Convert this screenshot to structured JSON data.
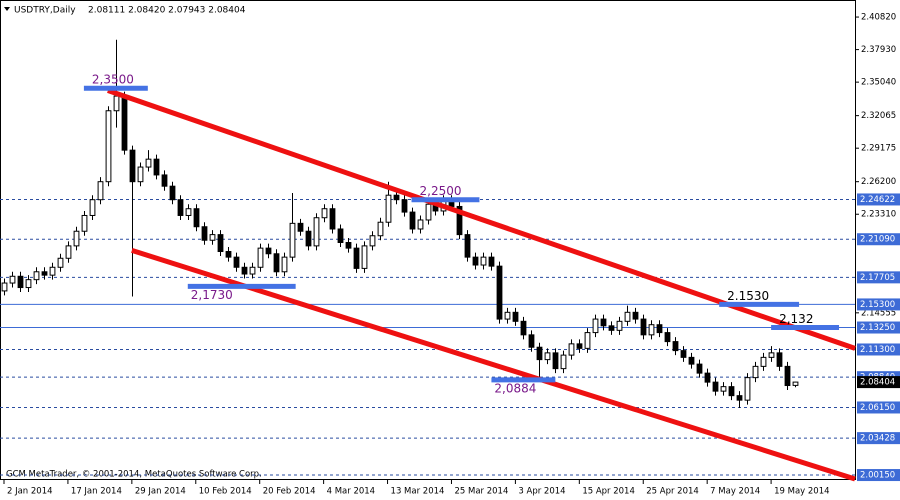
{
  "chart_data": {
    "type": "candlestick",
    "title": "USDTRY,Daily",
    "info": "2.08111 2.08420 2.07943 2.08404",
    "footer": "GCM MetaTrader, © 2001-2014, MetaQuotes Software Corp.",
    "up_color": "#ffffff",
    "down_color": "#000000",
    "xlim": [
      -0.5,
      106.5
    ],
    "ylim": [
      1.9971,
      2.4189
    ],
    "xticks": [
      {
        "value": 0,
        "label": "2 Jan 2014"
      },
      {
        "value": 8,
        "label": "17 Jan 2014"
      },
      {
        "value": 16,
        "label": "29 Jan 2014"
      },
      {
        "value": 24,
        "label": "10 Feb 2014"
      },
      {
        "value": 32,
        "label": "20 Feb 2014"
      },
      {
        "value": 40,
        "label": "4 Mar 2014"
      },
      {
        "value": 48,
        "label": "13 Mar 2014"
      },
      {
        "value": 56,
        "label": "25 Mar 2014"
      },
      {
        "value": 64,
        "label": "3 Apr 2014"
      },
      {
        "value": 72,
        "label": "15 Apr 2014"
      },
      {
        "value": 80,
        "label": "25 Apr 2014"
      },
      {
        "value": 88,
        "label": "7 May 2014"
      },
      {
        "value": 96,
        "label": "19 May 2014"
      }
    ],
    "yticks": [
      {
        "value": 2.4082,
        "label": "2.40820"
      },
      {
        "value": 2.3793,
        "label": "2.37930"
      },
      {
        "value": 2.3504,
        "label": "2.35040"
      },
      {
        "value": 2.32065,
        "label": "2.32065"
      },
      {
        "value": 2.29175,
        "label": "2.29175"
      },
      {
        "value": 2.262,
        "label": "2.26200"
      },
      {
        "value": 2.2331,
        "label": "2.23310"
      },
      {
        "value": 2.14555,
        "label": "2.14555"
      }
    ],
    "levels": [
      {
        "value": 2.24622,
        "label": "2.24622",
        "style": "dashed"
      },
      {
        "value": 2.2109,
        "label": "2.21090",
        "style": "dashed"
      },
      {
        "value": 2.17705,
        "label": "2.17705",
        "style": "dashed"
      },
      {
        "value": 2.153,
        "label": "2.15300",
        "style": "solid"
      },
      {
        "value": 2.1325,
        "label": "2.13250",
        "style": "solid"
      },
      {
        "value": 2.113,
        "label": "2.11300",
        "style": "dashed"
      },
      {
        "value": 2.0884,
        "label": "2.08840",
        "style": "dashed"
      },
      {
        "value": 2.08404,
        "label": "2.08404",
        "style": "current"
      },
      {
        "value": 2.0615,
        "label": "2.06150",
        "style": "dashed"
      },
      {
        "value": 2.03428,
        "label": "2.03428",
        "style": "dashed"
      },
      {
        "value": 2.0015,
        "label": "2.00150",
        "style": "dashed"
      }
    ],
    "trendlines": [
      {
        "x": [
          13,
          106.5
        ],
        "y": [
          2.343,
          2.114
        ],
        "color": "#ee1111"
      },
      {
        "x": [
          16,
          106.5
        ],
        "y": [
          2.201,
          1.998
        ],
        "color": "#ee1111"
      }
    ],
    "markers": [
      {
        "label": "2,3500",
        "value": 2.345,
        "x": [
          10,
          18
        ],
        "color": "#7a1a8a"
      },
      {
        "label": "2,2500",
        "value": 2.246,
        "x": [
          51,
          59.5
        ],
        "color": "#7a1a8a"
      },
      {
        "label": "2,1730",
        "value": 2.169,
        "x": [
          23,
          36.5
        ],
        "color": "#7a1a8a"
      },
      {
        "label": "2,0884",
        "value": 2.086,
        "x": [
          61,
          69
        ],
        "color": "#7a1a8a"
      },
      {
        "label": "2.1530",
        "value": 2.153,
        "x": [
          89.5,
          99.5
        ],
        "color": "#000000"
      },
      {
        "label": "2,132",
        "value": 2.1325,
        "x": [
          96,
          104.5
        ],
        "color": "#000000"
      }
    ],
    "ohlc": [
      [
        2.165,
        2.176,
        2.161,
        2.172
      ],
      [
        2.172,
        2.182,
        2.168,
        2.178
      ],
      [
        2.178,
        2.182,
        2.164,
        2.168
      ],
      [
        2.168,
        2.179,
        2.164,
        2.175
      ],
      [
        2.175,
        2.186,
        2.171,
        2.182
      ],
      [
        2.182,
        2.186,
        2.175,
        2.179
      ],
      [
        2.179,
        2.19,
        2.175,
        2.186
      ],
      [
        2.186,
        2.198,
        2.182,
        2.194
      ],
      [
        2.194,
        2.209,
        2.19,
        2.205
      ],
      [
        2.205,
        2.222,
        2.201,
        2.218
      ],
      [
        2.218,
        2.236,
        2.214,
        2.232
      ],
      [
        2.232,
        2.25,
        2.228,
        2.246
      ],
      [
        2.246,
        2.266,
        2.242,
        2.262
      ],
      [
        2.262,
        2.329,
        2.258,
        2.325
      ],
      [
        2.325,
        2.388,
        2.31,
        2.338
      ],
      [
        2.338,
        2.342,
        2.286,
        2.29
      ],
      [
        2.29,
        2.294,
        2.16,
        2.262
      ],
      [
        2.262,
        2.279,
        2.258,
        2.275
      ],
      [
        2.275,
        2.29,
        2.271,
        2.282
      ],
      [
        2.282,
        2.286,
        2.264,
        2.268
      ],
      [
        2.268,
        2.272,
        2.254,
        2.258
      ],
      [
        2.258,
        2.262,
        2.242,
        2.246
      ],
      [
        2.246,
        2.25,
        2.228,
        2.232
      ],
      [
        2.232,
        2.242,
        2.228,
        2.238
      ],
      [
        2.238,
        2.242,
        2.218,
        2.222
      ],
      [
        2.222,
        2.226,
        2.206,
        2.21
      ],
      [
        2.21,
        2.219,
        2.206,
        2.215
      ],
      [
        2.215,
        2.219,
        2.196,
        2.2
      ],
      [
        2.2,
        2.204,
        2.191,
        2.195
      ],
      [
        2.195,
        2.199,
        2.182,
        2.186
      ],
      [
        2.186,
        2.19,
        2.176,
        2.18
      ],
      [
        2.18,
        2.19,
        2.176,
        2.186
      ],
      [
        2.186,
        2.207,
        2.182,
        2.203
      ],
      [
        2.203,
        2.207,
        2.194,
        2.198
      ],
      [
        2.198,
        2.202,
        2.178,
        2.182
      ],
      [
        2.182,
        2.199,
        2.178,
        2.195
      ],
      [
        2.195,
        2.252,
        2.191,
        2.225
      ],
      [
        2.225,
        2.229,
        2.214,
        2.218
      ],
      [
        2.218,
        2.222,
        2.201,
        2.205
      ],
      [
        2.205,
        2.234,
        2.201,
        2.23
      ],
      [
        2.23,
        2.242,
        2.226,
        2.238
      ],
      [
        2.238,
        2.242,
        2.216,
        2.22
      ],
      [
        2.22,
        2.224,
        2.204,
        2.208
      ],
      [
        2.208,
        2.212,
        2.199,
        2.203
      ],
      [
        2.203,
        2.207,
        2.181,
        2.185
      ],
      [
        2.185,
        2.209,
        2.181,
        2.205
      ],
      [
        2.205,
        2.218,
        2.201,
        2.214
      ],
      [
        2.214,
        2.23,
        2.21,
        2.226
      ],
      [
        2.226,
        2.262,
        2.222,
        2.25
      ],
      [
        2.25,
        2.254,
        2.242,
        2.246
      ],
      [
        2.246,
        2.25,
        2.231,
        2.235
      ],
      [
        2.235,
        2.239,
        2.216,
        2.22
      ],
      [
        2.22,
        2.232,
        2.216,
        2.228
      ],
      [
        2.228,
        2.246,
        2.224,
        2.242
      ],
      [
        2.242,
        2.246,
        2.232,
        2.236
      ],
      [
        2.236,
        2.25,
        2.232,
        2.246
      ],
      [
        2.246,
        2.25,
        2.236,
        2.24
      ],
      [
        2.24,
        2.244,
        2.211,
        2.215
      ],
      [
        2.215,
        2.219,
        2.191,
        2.195
      ],
      [
        2.195,
        2.199,
        2.184,
        2.188
      ],
      [
        2.188,
        2.199,
        2.184,
        2.195
      ],
      [
        2.195,
        2.199,
        2.183,
        2.187
      ],
      [
        2.187,
        2.191,
        2.136,
        2.14
      ],
      [
        2.14,
        2.15,
        2.136,
        2.146
      ],
      [
        2.146,
        2.15,
        2.134,
        2.138
      ],
      [
        2.138,
        2.142,
        2.122,
        2.126
      ],
      [
        2.126,
        2.13,
        2.111,
        2.115
      ],
      [
        2.115,
        2.119,
        2.088,
        2.104
      ],
      [
        2.104,
        2.114,
        2.1,
        2.11
      ],
      [
        2.11,
        2.114,
        2.092,
        2.096
      ],
      [
        2.096,
        2.112,
        2.092,
        2.108
      ],
      [
        2.108,
        2.122,
        2.104,
        2.118
      ],
      [
        2.118,
        2.122,
        2.11,
        2.114
      ],
      [
        2.114,
        2.132,
        2.11,
        2.128
      ],
      [
        2.128,
        2.144,
        2.124,
        2.14
      ],
      [
        2.14,
        2.144,
        2.13,
        2.134
      ],
      [
        2.134,
        2.138,
        2.126,
        2.13
      ],
      [
        2.13,
        2.142,
        2.126,
        2.138
      ],
      [
        2.138,
        2.152,
        2.134,
        2.146
      ],
      [
        2.146,
        2.15,
        2.136,
        2.14
      ],
      [
        2.14,
        2.144,
        2.122,
        2.126
      ],
      [
        2.126,
        2.139,
        2.122,
        2.135
      ],
      [
        2.135,
        2.139,
        2.124,
        2.128
      ],
      [
        2.128,
        2.132,
        2.116,
        2.12
      ],
      [
        2.12,
        2.124,
        2.108,
        2.112
      ],
      [
        2.112,
        2.116,
        2.102,
        2.106
      ],
      [
        2.106,
        2.11,
        2.096,
        2.1
      ],
      [
        2.1,
        2.104,
        2.088,
        2.092
      ],
      [
        2.092,
        2.096,
        2.08,
        2.084
      ],
      [
        2.084,
        2.088,
        2.072,
        2.076
      ],
      [
        2.076,
        2.084,
        2.072,
        2.08
      ],
      [
        2.08,
        2.084,
        2.068,
        2.072
      ],
      [
        2.072,
        2.076,
        2.061,
        2.068
      ],
      [
        2.068,
        2.092,
        2.064,
        2.088
      ],
      [
        2.088,
        2.102,
        2.084,
        2.098
      ],
      [
        2.098,
        2.11,
        2.094,
        2.106
      ],
      [
        2.106,
        2.116,
        2.102,
        2.11
      ],
      [
        2.11,
        2.114,
        2.094,
        2.098
      ],
      [
        2.098,
        2.102,
        2.077,
        2.081
      ],
      [
        2.08111,
        2.0842,
        2.07943,
        2.08404
      ]
    ]
  }
}
